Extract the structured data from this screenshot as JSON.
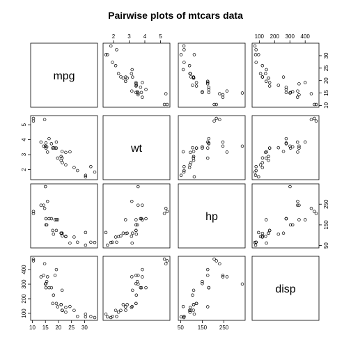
{
  "chart_data": {
    "type": "scatter-matrix",
    "title": "Pairwise plots of mtcars data",
    "variables": [
      "mpg",
      "wt",
      "hp",
      "disp"
    ],
    "ticks": {
      "mpg": [
        10,
        15,
        20,
        25,
        30
      ],
      "wt": [
        2,
        3,
        4,
        5
      ],
      "hp": [
        50,
        150,
        250
      ],
      "disp": [
        100,
        200,
        300,
        400
      ]
    },
    "ranges": {
      "mpg": [
        10.4,
        33.9
      ],
      "wt": [
        1.513,
        5.424
      ],
      "hp": [
        52,
        335
      ],
      "disp": [
        71.1,
        472
      ]
    },
    "data": {
      "mpg": [
        21.0,
        21.0,
        22.8,
        21.4,
        18.7,
        18.1,
        14.3,
        24.4,
        22.8,
        19.2,
        17.8,
        16.4,
        17.3,
        15.2,
        10.4,
        10.4,
        14.7,
        32.4,
        30.4,
        33.9,
        21.5,
        15.5,
        15.2,
        13.3,
        19.2,
        27.3,
        26.0,
        30.4,
        15.8,
        19.7,
        15.0,
        21.4
      ],
      "wt": [
        2.62,
        2.875,
        2.32,
        3.215,
        3.44,
        3.46,
        3.57,
        3.19,
        3.15,
        3.44,
        3.44,
        4.07,
        3.73,
        3.78,
        5.25,
        5.424,
        5.345,
        2.2,
        1.615,
        1.835,
        2.465,
        3.52,
        3.435,
        3.84,
        3.845,
        1.935,
        2.14,
        1.513,
        3.17,
        2.77,
        3.57,
        2.78
      ],
      "hp": [
        110,
        110,
        93,
        110,
        175,
        105,
        245,
        62,
        95,
        123,
        123,
        180,
        180,
        180,
        205,
        215,
        230,
        66,
        52,
        65,
        97,
        150,
        150,
        245,
        175,
        66,
        91,
        113,
        264,
        175,
        335,
        109
      ],
      "disp": [
        160,
        160,
        108,
        258,
        360,
        225,
        360,
        146.7,
        140.8,
        167.6,
        167.6,
        275.8,
        275.8,
        275.8,
        472,
        460,
        440,
        78.7,
        75.7,
        71.1,
        120.1,
        318,
        304,
        350,
        400,
        79,
        120.3,
        95.1,
        351,
        145,
        301,
        121
      ]
    }
  }
}
